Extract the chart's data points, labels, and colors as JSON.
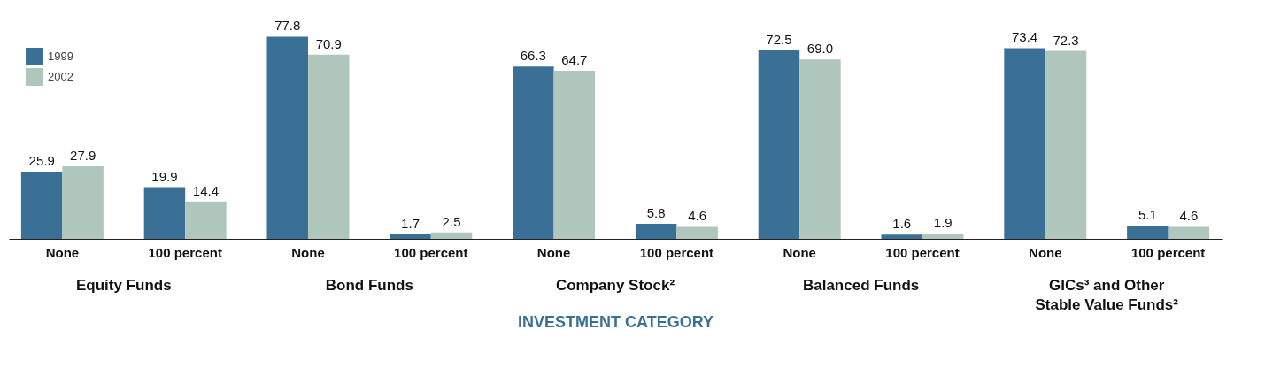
{
  "chart_data": {
    "type": "bar",
    "xlabel": "INVESTMENT CATEGORY",
    "categories": [
      "None",
      "100 percent",
      "None",
      "100 percent",
      "None",
      "100 percent",
      "None",
      "100 percent",
      "None",
      "100 percent"
    ],
    "series": [
      {
        "name": "1999",
        "color": "#3a7096",
        "values": [
          25.9,
          19.9,
          77.8,
          1.7,
          66.3,
          5.8,
          72.5,
          1.6,
          73.4,
          5.1
        ],
        "value_labels": [
          "25.9",
          "19.9",
          "77.8",
          "1.7",
          "66.3",
          "5.8",
          "72.5",
          "1.6",
          "73.4",
          "5.1"
        ]
      },
      {
        "name": "2002",
        "color": "#afc6bd",
        "values": [
          27.9,
          14.4,
          70.9,
          2.5,
          64.7,
          4.6,
          69.0,
          1.9,
          72.3,
          4.6
        ],
        "value_labels": [
          "27.9",
          "14.4",
          "70.9",
          "2.5",
          "64.7",
          "4.6",
          "69.0",
          "1.9",
          "72.3",
          "4.6"
        ]
      }
    ],
    "annotations": [
      "Equity Funds",
      "Bond Funds",
      "Company Stock²",
      "Balanced Funds",
      "GICs³ and Other\nStable Value Funds²"
    ],
    "legend": "top left",
    "grid": false
  }
}
